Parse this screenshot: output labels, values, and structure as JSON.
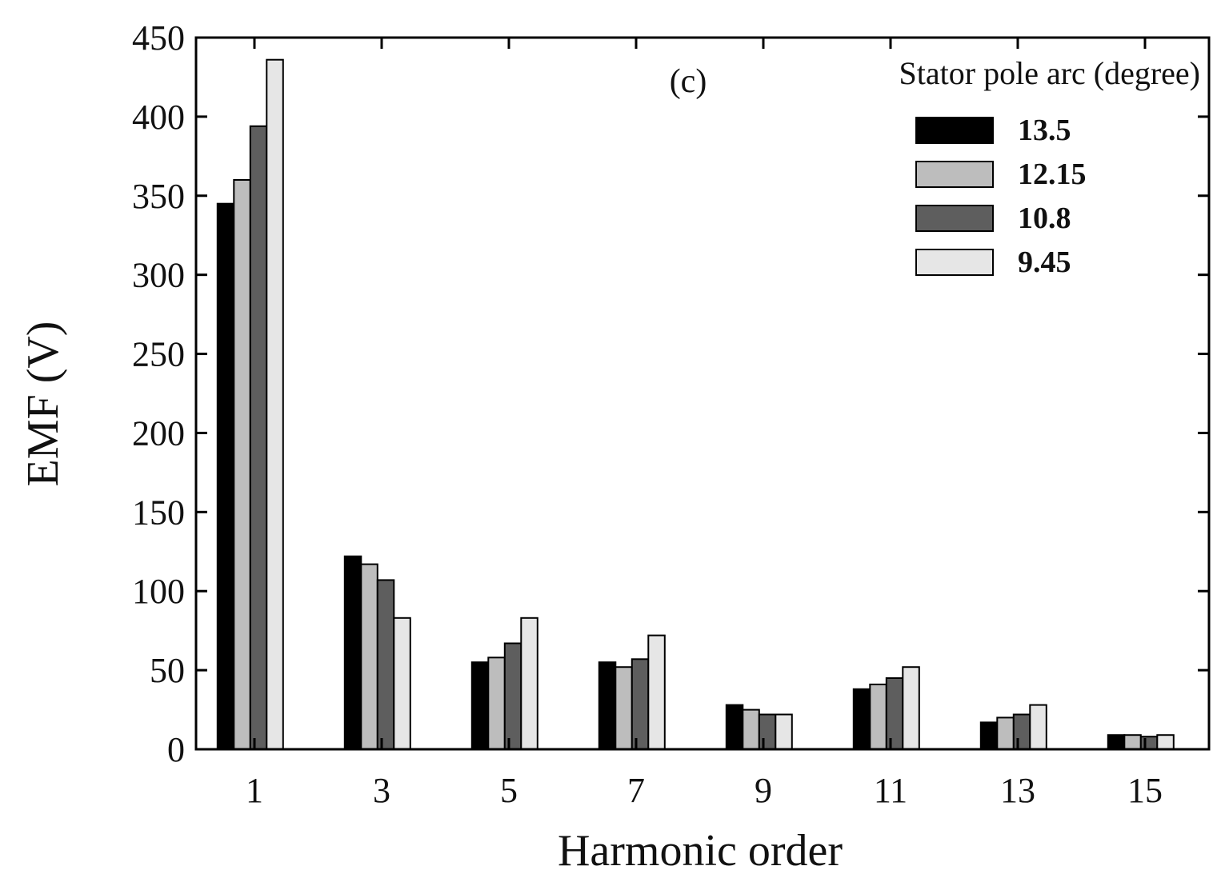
{
  "chart_data": {
    "type": "bar",
    "title": "",
    "panel_label": "(c)",
    "xlabel": "Harmonic order",
    "ylabel": "EMF (V)",
    "categories": [
      "1",
      "3",
      "5",
      "7",
      "9",
      "11",
      "13",
      "15"
    ],
    "ylim": [
      0,
      450
    ],
    "yticks": [
      0,
      50,
      100,
      150,
      200,
      250,
      300,
      350,
      400,
      450
    ],
    "legend_title": "Stator pole arc (degree)",
    "legend_position": "top-right",
    "grid": false,
    "series": [
      {
        "name": "13.5",
        "color": "#000000",
        "values": [
          345,
          122,
          55,
          55,
          28,
          38,
          17,
          9
        ]
      },
      {
        "name": "12.15",
        "color": "#bdbdbd",
        "values": [
          360,
          117,
          58,
          52,
          25,
          41,
          20,
          9
        ]
      },
      {
        "name": "10.8",
        "color": "#5e5e5e",
        "values": [
          394,
          107,
          67,
          57,
          22,
          45,
          22,
          8
        ]
      },
      {
        "name": "9.45",
        "color": "#e6e6e6",
        "values": [
          436,
          83,
          83,
          72,
          22,
          52,
          28,
          9
        ]
      }
    ]
  }
}
